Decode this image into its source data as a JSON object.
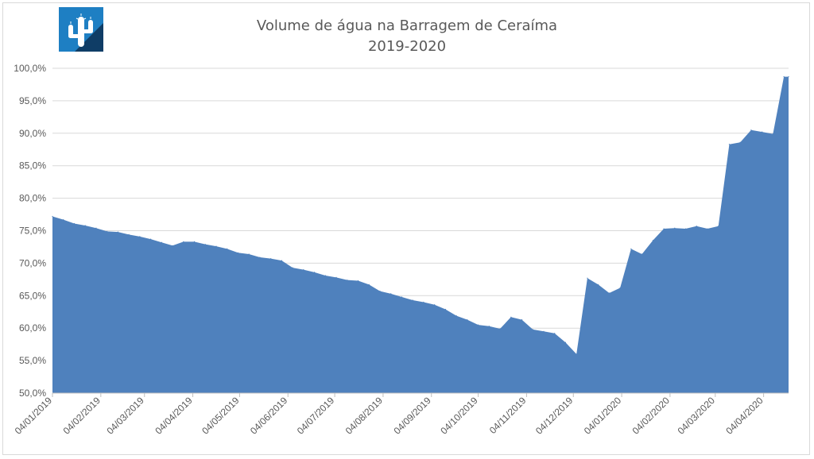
{
  "chart_data": {
    "type": "area",
    "title": "Volume de água na Barragem de Ceraíma",
    "subtitle": "2019-2020",
    "xlabel": "",
    "ylabel": "",
    "ylim": [
      50,
      100
    ],
    "yticks": [
      "50,0%",
      "55,0%",
      "60,0%",
      "65,0%",
      "70,0%",
      "75,0%",
      "80,0%",
      "85,0%",
      "90,0%",
      "95,0%",
      "100,0%"
    ],
    "xticks": [
      "04/01/2019",
      "04/02/2019",
      "04/03/2019",
      "04/04/2019",
      "04/05/2019",
      "04/06/2019",
      "04/07/2019",
      "04/08/2019",
      "04/09/2019",
      "04/10/2019",
      "04/11/2019",
      "04/12/2019",
      "04/01/2020",
      "04/02/2020",
      "04/03/2020",
      "04/04/2020"
    ],
    "grid": true,
    "legend": "none",
    "color": "#4f81bd",
    "series": [
      {
        "x": [
          "2019-01-04",
          "2019-01-11",
          "2019-01-18",
          "2019-01-25",
          "2019-02-01",
          "2019-02-08",
          "2019-02-15",
          "2019-02-22",
          "2019-03-01",
          "2019-03-08",
          "2019-03-15",
          "2019-03-22",
          "2019-03-29",
          "2019-04-05",
          "2019-04-12",
          "2019-04-19",
          "2019-04-26",
          "2019-05-03",
          "2019-05-10",
          "2019-05-17",
          "2019-05-24",
          "2019-05-31",
          "2019-06-07",
          "2019-06-14",
          "2019-06-21",
          "2019-06-28",
          "2019-07-05",
          "2019-07-12",
          "2019-07-19",
          "2019-07-26",
          "2019-08-02",
          "2019-08-09",
          "2019-08-16",
          "2019-08-23",
          "2019-08-30",
          "2019-09-06",
          "2019-09-13",
          "2019-09-20",
          "2019-09-27",
          "2019-10-04",
          "2019-10-11",
          "2019-10-18",
          "2019-10-25",
          "2019-11-01",
          "2019-11-08",
          "2019-11-15",
          "2019-11-22",
          "2019-11-29",
          "2019-12-06",
          "2019-12-13",
          "2019-12-20",
          "2019-12-27",
          "2020-01-03",
          "2020-01-10",
          "2020-01-17",
          "2020-01-24",
          "2020-01-31",
          "2020-02-07",
          "2020-02-14",
          "2020-02-21",
          "2020-02-28",
          "2020-03-06",
          "2020-03-13",
          "2020-03-20",
          "2020-03-27",
          "2020-04-03",
          "2020-04-10",
          "2020-04-17",
          "2020-04-20"
        ],
        "values": [
          77.2,
          76.7,
          76.1,
          75.8,
          75.4,
          74.9,
          74.8,
          74.4,
          74.1,
          73.7,
          73.2,
          72.7,
          73.3,
          73.3,
          72.9,
          72.6,
          72.2,
          71.6,
          71.4,
          70.9,
          70.7,
          70.4,
          69.3,
          69.0,
          68.6,
          68.1,
          67.8,
          67.4,
          67.3,
          66.7,
          65.7,
          65.3,
          64.8,
          64.3,
          64.0,
          63.6,
          62.9,
          61.9,
          61.3,
          60.5,
          60.3,
          59.9,
          61.7,
          61.3,
          59.8,
          59.5,
          59.2,
          57.8,
          56.0,
          67.7,
          66.7,
          65.4,
          66.2,
          72.2,
          71.4,
          73.5,
          75.3,
          75.4,
          75.3,
          75.7,
          75.3,
          75.7,
          88.3,
          88.6,
          90.5,
          90.2,
          89.9,
          98.7,
          98.7
        ]
      }
    ]
  },
  "logo": {
    "icon": "cactus-logo-icon",
    "colors": [
      "#1e7fc3",
      "#0f3d66",
      "#ffffff"
    ]
  }
}
